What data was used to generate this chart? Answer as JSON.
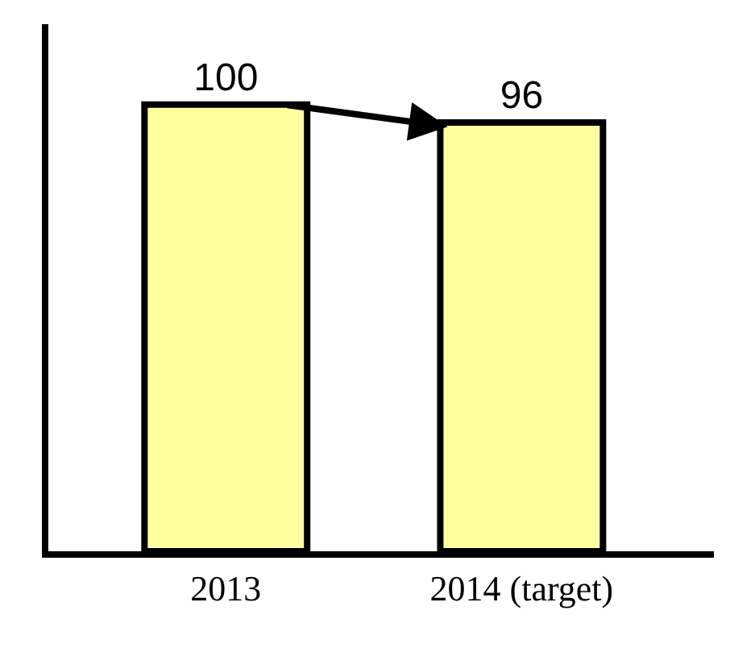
{
  "chart_data": {
    "type": "bar",
    "categories": [
      "2013",
      "2014 (target)"
    ],
    "values": [
      100,
      96
    ],
    "color": "#ffffa0",
    "data_labels": true,
    "legend": false
  }
}
